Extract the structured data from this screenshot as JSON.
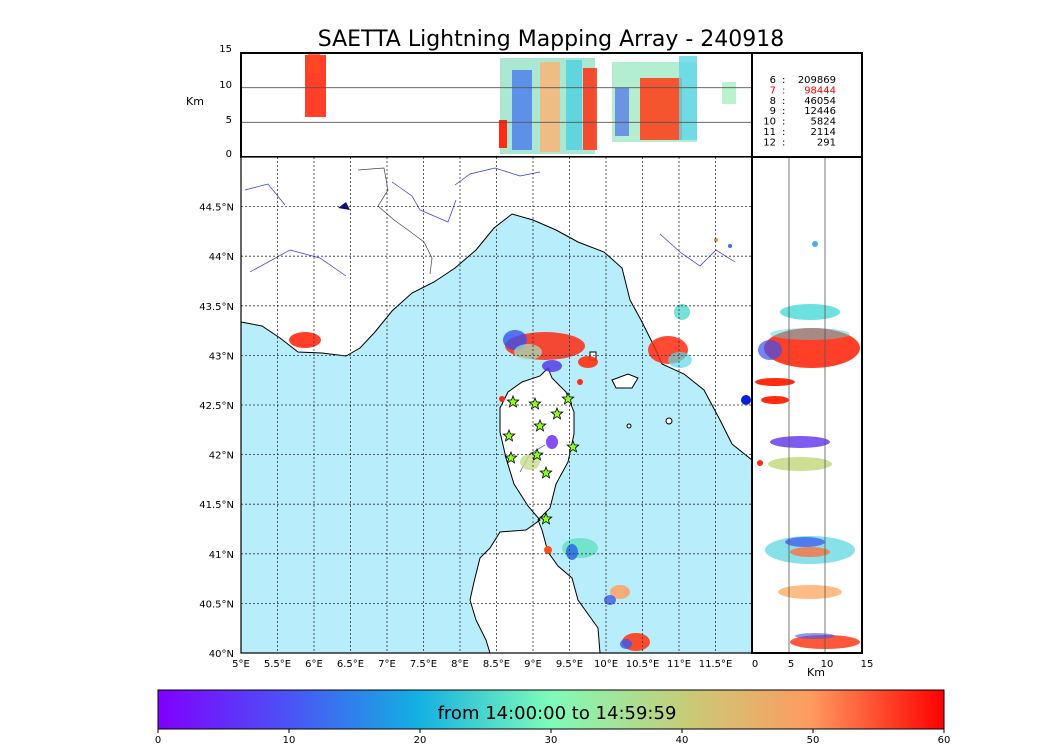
{
  "title": "SAETTA Lightning Mapping Array - 240918",
  "top_panel": {
    "ylabel": "Km",
    "ytick_labels": [
      "15",
      "10",
      "5",
      "0"
    ]
  },
  "side_panel": {
    "xlabel": "Km",
    "xtick_labels": [
      "0",
      "5",
      "10",
      "15"
    ]
  },
  "map": {
    "lon_labels": [
      "5°E",
      "5.5°E",
      "6°E",
      "6.5°E",
      "7°E",
      "7.5°E",
      "8°E",
      "8.5°E",
      "9°E",
      "9.5°E",
      "10°E",
      "10.5°E",
      "11°E",
      "11.5°E"
    ],
    "lat_labels": [
      "40°N",
      "40.5°N",
      "41°N",
      "41.5°N",
      "42°N",
      "42.5°N",
      "43°N",
      "43.5°N",
      "44°N",
      "44.5°N"
    ],
    "sea_color": "#b8eefb",
    "land_color": "#ffffff",
    "grid": "dotted"
  },
  "station_counts": {
    "highlight_color": "#ff0000",
    "rows": [
      {
        "stations": "6",
        "count": "209869",
        "highlight": false
      },
      {
        "stations": "7",
        "count": "98444",
        "highlight": true
      },
      {
        "stations": "8",
        "count": "46054",
        "highlight": false
      },
      {
        "stations": "9",
        "count": "12446",
        "highlight": false
      },
      {
        "stations": "10",
        "count": "5824",
        "highlight": false
      },
      {
        "stations": "11",
        "count": "2114",
        "highlight": false
      },
      {
        "stations": "12",
        "count": "291",
        "highlight": false
      }
    ]
  },
  "colorbar": {
    "label": "from 14:00:00 to 14:59:59",
    "tick_labels": [
      "0",
      "10",
      "20",
      "30",
      "40",
      "50",
      "60"
    ],
    "colormap": "rainbow"
  }
}
